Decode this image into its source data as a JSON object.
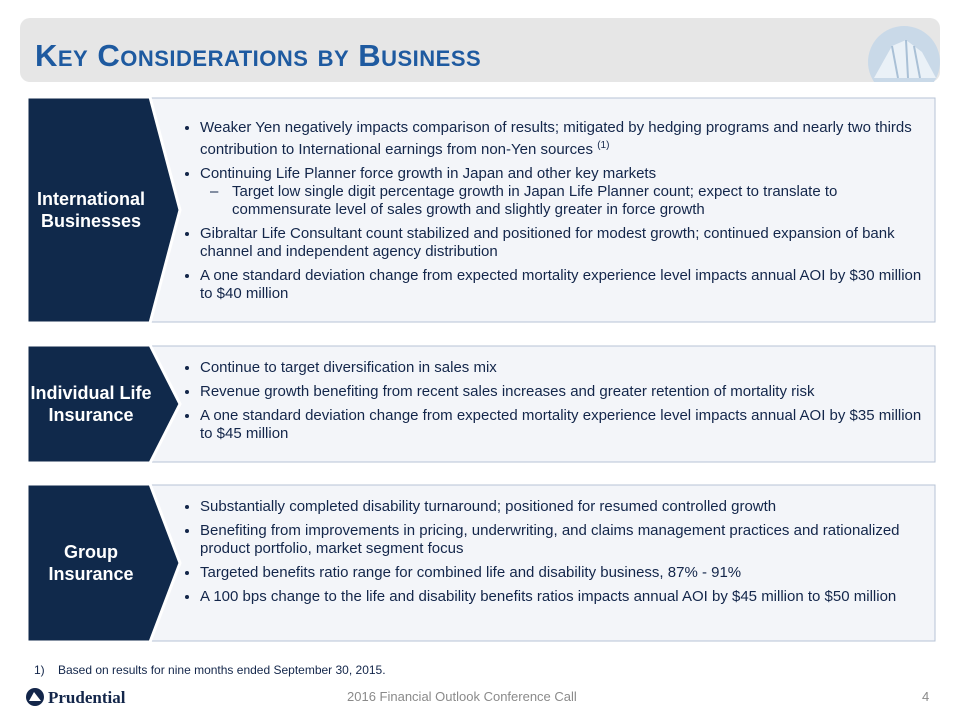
{
  "header": {
    "title": "Key Considerations by Business"
  },
  "sections": [
    {
      "label": "International Businesses",
      "bullets": [
        {
          "text": "Weaker Yen negatively impacts comparison of results; mitigated by hedging programs and nearly two thirds contribution to International earnings from non-Yen sources",
          "sup": "(1)"
        },
        {
          "text": "Continuing Life Planner force growth in Japan and other key markets",
          "sub": [
            "Target low single digit percentage growth in Japan Life Planner count; expect to translate to commensurate level of sales growth and slightly greater in force growth"
          ]
        },
        {
          "text": "Gibraltar Life Consultant count stabilized and positioned for modest growth; continued expansion of bank channel and independent agency distribution"
        },
        {
          "text": "A one standard deviation change from expected mortality experience level impacts annual AOI by $30 million to $40 million"
        }
      ]
    },
    {
      "label": "Individual Life Insurance",
      "bullets": [
        {
          "text": "Continue to target diversification in sales mix"
        },
        {
          "text": "Revenue growth benefiting from recent sales increases and greater retention of mortality risk"
        },
        {
          "text": "A one standard deviation change from expected mortality experience level impacts annual AOI by $35 million to $45 million"
        }
      ]
    },
    {
      "label": "Group Insurance",
      "bullets": [
        {
          "text": "Substantially completed disability turnaround; positioned for resumed controlled growth"
        },
        {
          "text": "Benefiting from improvements in pricing, underwriting, and claims management practices and rationalized product portfolio, market segment focus"
        },
        {
          "text": "Targeted benefits ratio range for combined life and disability business, 87% - 91%"
        },
        {
          "text": "A 100 bps change to the life and disability benefits ratios impacts annual AOI by $45 million to $50 million"
        }
      ]
    }
  ],
  "footnote": {
    "marker": "1)",
    "text": "Based on results for nine months ended September 30, 2015."
  },
  "footer": {
    "logo": "Prudential",
    "center": "2016 Financial Outlook Conference Call",
    "page": 4
  }
}
